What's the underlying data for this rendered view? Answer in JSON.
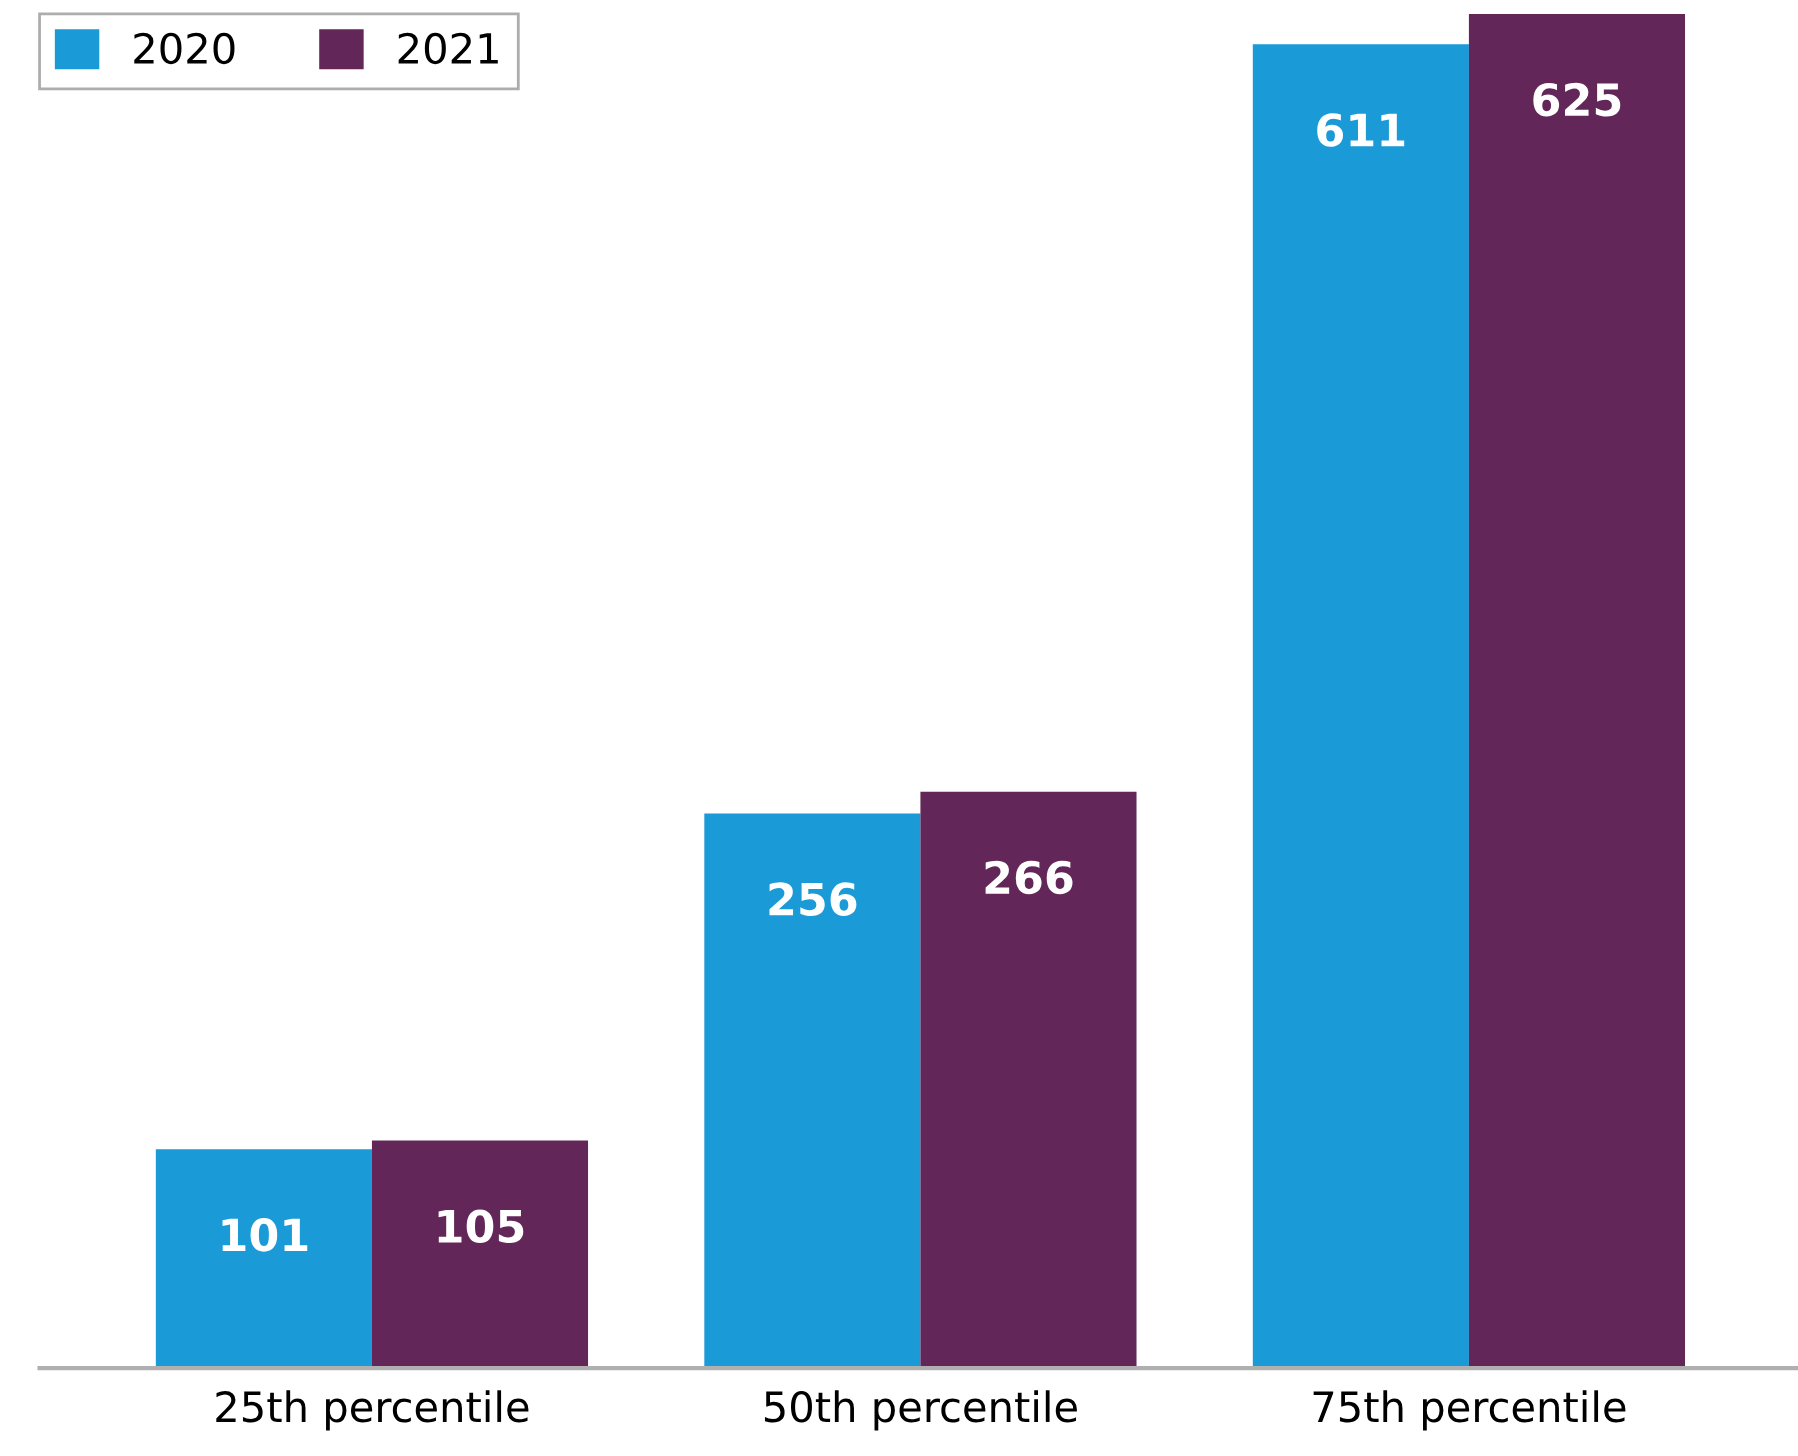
{
  "chart_data": {
    "type": "bar",
    "categories": [
      "25th percentile",
      "50th percentile",
      "75th percentile"
    ],
    "series": [
      {
        "name": "2020",
        "color": "#1a9ad6",
        "values": [
          101,
          256,
          611
        ]
      },
      {
        "name": "2021",
        "color": "#622758",
        "values": [
          105,
          266,
          625
        ]
      }
    ],
    "data_labels": true,
    "legend": "top left",
    "grid": false
  }
}
